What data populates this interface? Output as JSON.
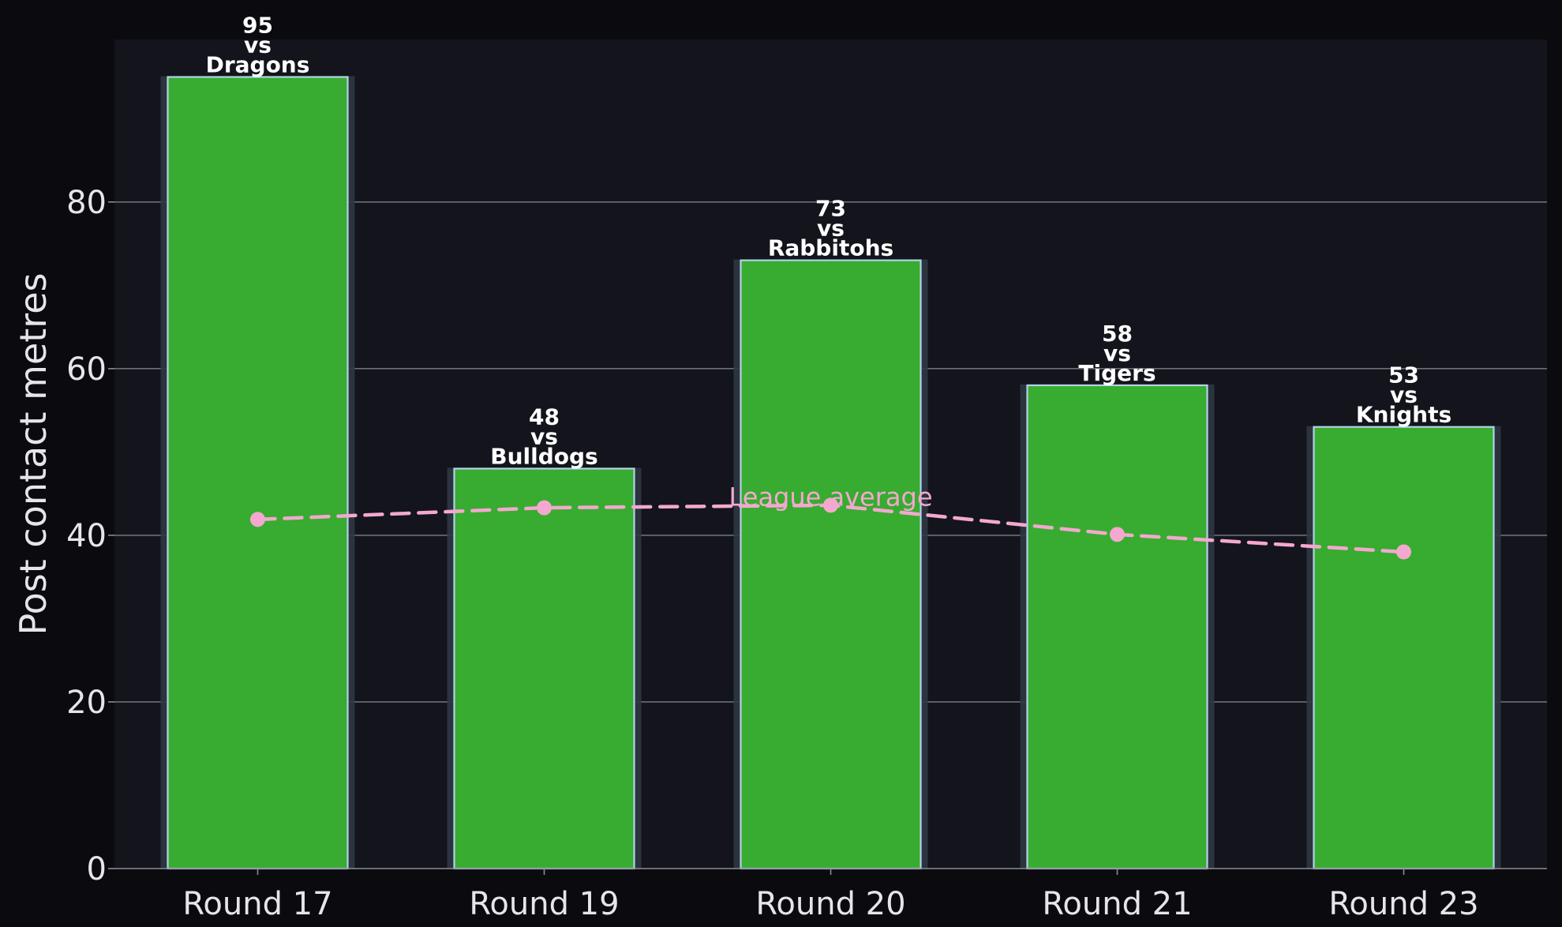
{
  "chart_data": {
    "type": "bar",
    "title": "",
    "xlabel": "",
    "ylabel": "Post contact metres",
    "ylim": [
      0,
      99.5
    ],
    "yticks": [
      0,
      20,
      40,
      60,
      80
    ],
    "grid": "horizontal",
    "categories": [
      "Round 17",
      "Round 19",
      "Round 20",
      "Round 21",
      "Round 23"
    ],
    "values": [
      95,
      48,
      73,
      58,
      53
    ],
    "opponents": [
      "Dragons",
      "Bulldogs",
      "Rabbitohs",
      "Tigers",
      "Knights"
    ],
    "vs_text": "vs",
    "series": [
      {
        "type": "line",
        "style": "dashed",
        "values": [
          41.9,
          43.3,
          43.6,
          40.1,
          38.0
        ]
      }
    ],
    "annotations": [
      {
        "text": "League average",
        "category": "Round 20",
        "y": 44.6
      }
    ],
    "colors": {
      "figure_bg": "#0b0b0f",
      "plot_bg": "#13141c",
      "bar_fill": "#37ac30",
      "bar_edge": "#b4d2e8",
      "bar_shadow": "#2f3643",
      "average_line": "#f4a8cf",
      "grid": "#6c6f76",
      "text": "#e6e6ea"
    }
  }
}
